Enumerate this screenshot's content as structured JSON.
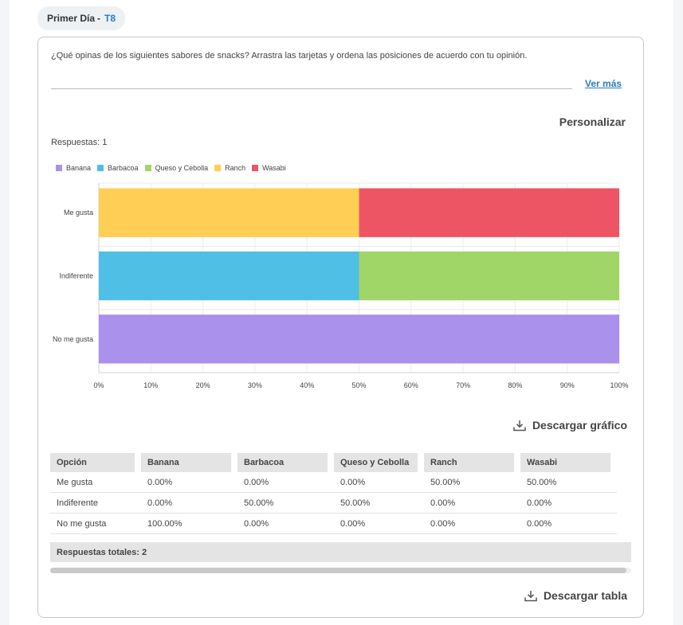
{
  "tab": {
    "title": "Primer Día",
    "separator": "-",
    "code": "T8"
  },
  "question": "¿Qué opinas de los siguientes sabores de snacks? Arrastra las tarjetas y ordena las posiciones de acuerdo con tu opinión.",
  "ver_mas": "Ver más",
  "personalizar": "Personalizar",
  "respuestas": "Respuestas: 1",
  "colors": {
    "Banana": "#a991ec",
    "Barbacoa": "#4fbfe6",
    "Queso y Cebolla": "#a0d568",
    "Ranch": "#ffce54",
    "Wasabi": "#ed5565"
  },
  "chart_data": {
    "type": "bar",
    "orientation": "horizontal",
    "stacked": true,
    "categories": [
      "Me gusta",
      "Indiferente",
      "No me gusta"
    ],
    "series": [
      {
        "name": "Banana",
        "values": [
          0,
          0,
          100
        ]
      },
      {
        "name": "Barbacoa",
        "values": [
          0,
          50,
          0
        ]
      },
      {
        "name": "Queso y Cebolla",
        "values": [
          0,
          50,
          0
        ]
      },
      {
        "name": "Ranch",
        "values": [
          50,
          0,
          0
        ]
      },
      {
        "name": "Wasabi",
        "values": [
          50,
          0,
          0
        ]
      }
    ],
    "xlim": [
      0,
      100
    ],
    "xticks": [
      "0%",
      "10%",
      "20%",
      "30%",
      "40%",
      "50%",
      "60%",
      "70%",
      "80%",
      "90%",
      "100%"
    ],
    "legend": "top-left",
    "grid": true
  },
  "download_chart": "Descargar gráfico",
  "table": {
    "headers": [
      "Opción",
      "Banana",
      "Barbacoa",
      "Queso y Cebolla",
      "Ranch",
      "Wasabi"
    ],
    "rows": [
      [
        "Me gusta",
        "0.00%",
        "0.00%",
        "0.00%",
        "50.00%",
        "50.00%"
      ],
      [
        "Indiferente",
        "0.00%",
        "50.00%",
        "50.00%",
        "0.00%",
        "0.00%"
      ],
      [
        "No me gusta",
        "100.00%",
        "0.00%",
        "0.00%",
        "0.00%",
        "0.00%"
      ]
    ]
  },
  "total": "Respuestas totales: 2",
  "download_table": "Descargar tabla"
}
